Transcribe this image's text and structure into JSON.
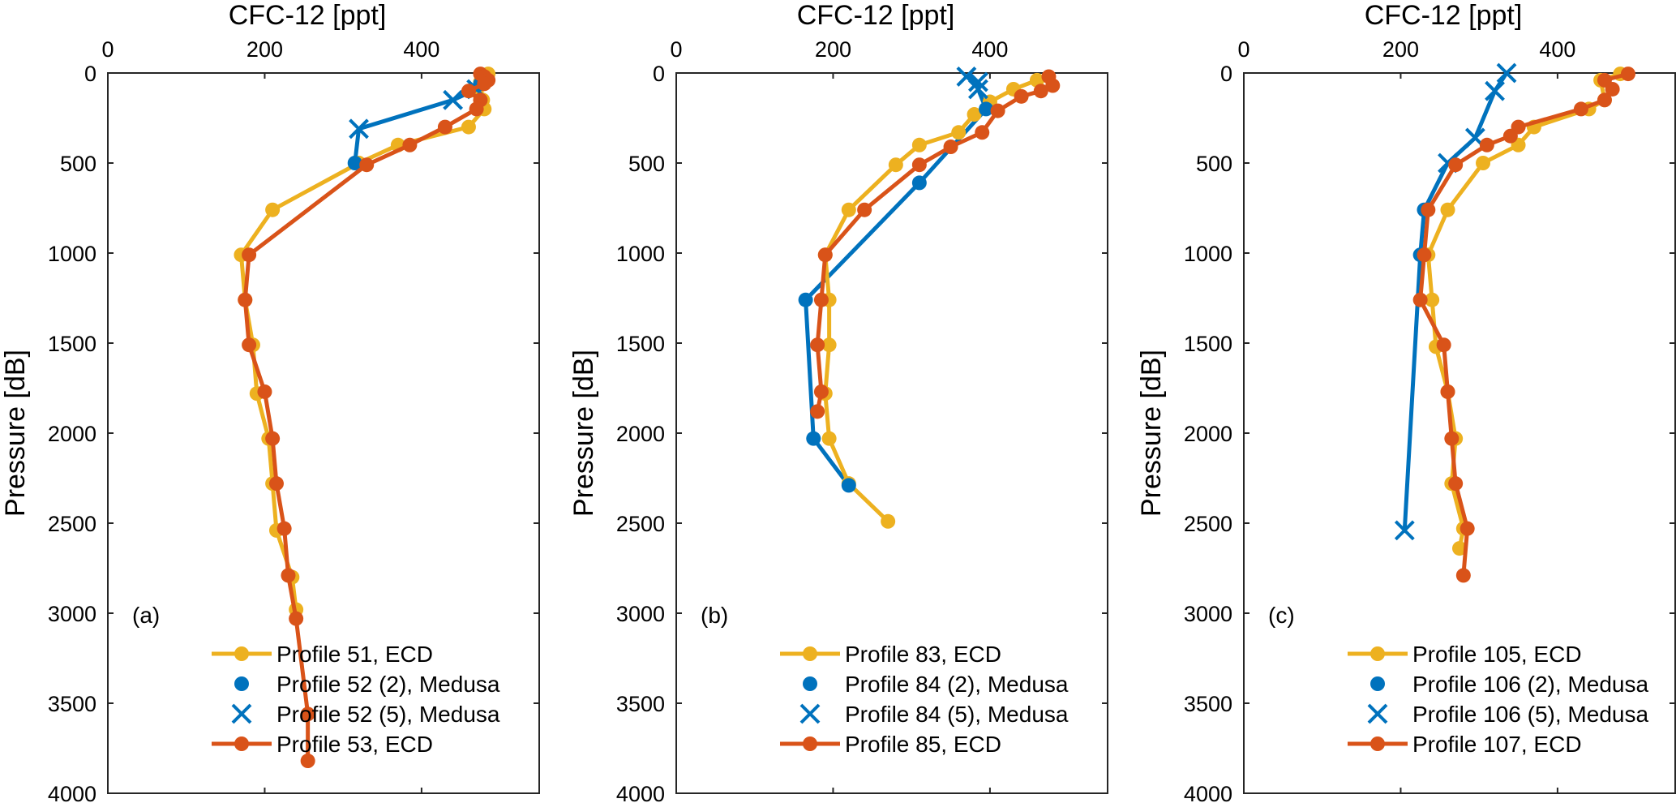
{
  "chart_data": [
    {
      "type": "line",
      "panel_label": "(a)",
      "xlabel": "CFC-12 [ppt]",
      "ylabel": "Pressure [dB]",
      "xlim": [
        0,
        550
      ],
      "ylim": [
        0,
        4000
      ],
      "y_reversed": true,
      "x_axis_location": "top",
      "xticks": [
        0,
        200,
        400
      ],
      "yticks": [
        0,
        500,
        1000,
        1500,
        2000,
        2500,
        3000,
        3500,
        4000
      ],
      "legend_position": "bottom-right",
      "series": [
        {
          "name": "Profile 51, ECD",
          "color": "#EDB120",
          "style": "line-dot",
          "points": [
            [
              485,
              5
            ],
            [
              480,
              20
            ],
            [
              475,
              50
            ],
            [
              470,
              100
            ],
            [
              478,
              150
            ],
            [
              480,
              200
            ],
            [
              460,
              300
            ],
            [
              370,
              400
            ],
            [
              320,
              500
            ],
            [
              210,
              760
            ],
            [
              170,
              1010
            ],
            [
              175,
              1260
            ],
            [
              185,
              1510
            ],
            [
              190,
              1780
            ],
            [
              205,
              2030
            ],
            [
              210,
              2280
            ],
            [
              215,
              2540
            ],
            [
              235,
              2800
            ],
            [
              240,
              2980
            ]
          ]
        },
        {
          "name": "Profile 52 (2), Medusa",
          "color": "#0072BD",
          "style": "dot",
          "points": [
            [
              315,
              500
            ],
            [
              475,
              60
            ]
          ]
        },
        {
          "name": "Profile 52 (5), Medusa",
          "color": "#0072BD",
          "style": "x",
          "points": [
            [
              470,
              90
            ],
            [
              440,
              150
            ],
            [
              320,
              310
            ]
          ]
        },
        {
          "name": "Profile 53, ECD",
          "color": "#D95319",
          "style": "line-dot",
          "points": [
            [
              475,
              5
            ],
            [
              480,
              20
            ],
            [
              485,
              40
            ],
            [
              480,
              60
            ],
            [
              460,
              100
            ],
            [
              475,
              150
            ],
            [
              470,
              200
            ],
            [
              430,
              300
            ],
            [
              385,
              400
            ],
            [
              330,
              510
            ],
            [
              180,
              1010
            ],
            [
              175,
              1260
            ],
            [
              180,
              1510
            ],
            [
              200,
              1770
            ],
            [
              210,
              2030
            ],
            [
              215,
              2280
            ],
            [
              225,
              2530
            ],
            [
              230,
              2790
            ],
            [
              240,
              3030
            ],
            [
              255,
              3560
            ],
            [
              255,
              3820
            ]
          ]
        }
      ],
      "medusa_connector": [
        [
          320,
          310
        ],
        [
          315,
          500
        ]
      ]
    },
    {
      "type": "line",
      "panel_label": "(b)",
      "xlabel": "CFC-12 [ppt]",
      "ylabel": "Pressure [dB]",
      "xlim": [
        0,
        550
      ],
      "ylim": [
        0,
        4000
      ],
      "y_reversed": true,
      "x_axis_location": "top",
      "xticks": [
        0,
        200,
        400
      ],
      "yticks": [
        0,
        500,
        1000,
        1500,
        2000,
        2500,
        3000,
        3500,
        4000
      ],
      "legend_position": "bottom-right",
      "series": [
        {
          "name": "Profile 83, ECD",
          "color": "#EDB120",
          "style": "line-dot",
          "points": [
            [
              460,
              40
            ],
            [
              430,
              90
            ],
            [
              400,
              160
            ],
            [
              380,
              230
            ],
            [
              360,
              330
            ],
            [
              310,
              400
            ],
            [
              280,
              510
            ],
            [
              220,
              760
            ],
            [
              190,
              1010
            ],
            [
              195,
              1260
            ],
            [
              195,
              1510
            ],
            [
              190,
              1780
            ],
            [
              195,
              2030
            ],
            [
              220,
              2280
            ],
            [
              270,
              2490
            ]
          ]
        },
        {
          "name": "Profile 84 (2), Medusa",
          "color": "#0072BD",
          "style": "dot",
          "points": [
            [
              395,
              200
            ],
            [
              310,
              610
            ],
            [
              165,
              1260
            ],
            [
              175,
              2030
            ],
            [
              220,
              2290
            ]
          ]
        },
        {
          "name": "Profile 84 (5), Medusa",
          "color": "#0072BD",
          "style": "x",
          "points": [
            [
              370,
              20
            ],
            [
              385,
              50
            ],
            [
              385,
              90
            ]
          ]
        },
        {
          "name": "Profile 85, ECD",
          "color": "#D95319",
          "style": "line-dot",
          "points": [
            [
              475,
              20
            ],
            [
              480,
              70
            ],
            [
              465,
              100
            ],
            [
              440,
              130
            ],
            [
              410,
              210
            ],
            [
              390,
              330
            ],
            [
              350,
              410
            ],
            [
              310,
              510
            ],
            [
              240,
              760
            ],
            [
              190,
              1010
            ],
            [
              185,
              1260
            ],
            [
              180,
              1510
            ],
            [
              185,
              1770
            ],
            [
              180,
              1880
            ]
          ]
        }
      ],
      "medusa_connector": [
        [
          385,
          90
        ],
        [
          395,
          200
        ]
      ]
    },
    {
      "type": "line",
      "panel_label": "(c)",
      "xlabel": "CFC-12 [ppt]",
      "ylabel": "Pressure [dB]",
      "xlim": [
        0,
        550
      ],
      "ylim": [
        0,
        4000
      ],
      "y_reversed": true,
      "x_axis_location": "top",
      "xticks": [
        0,
        200,
        400
      ],
      "yticks": [
        0,
        500,
        1000,
        1500,
        2000,
        2500,
        3000,
        3500,
        4000
      ],
      "legend_position": "bottom-right",
      "series": [
        {
          "name": "Profile 105, ECD",
          "color": "#EDB120",
          "style": "line-dot",
          "points": [
            [
              480,
              5
            ],
            [
              455,
              40
            ],
            [
              460,
              150
            ],
            [
              440,
              200
            ],
            [
              370,
              300
            ],
            [
              350,
              400
            ],
            [
              305,
              500
            ],
            [
              260,
              760
            ],
            [
              235,
              1010
            ],
            [
              240,
              1260
            ],
            [
              245,
              1520
            ],
            [
              260,
              1770
            ],
            [
              270,
              2030
            ],
            [
              265,
              2280
            ],
            [
              280,
              2530
            ],
            [
              275,
              2640
            ]
          ]
        },
        {
          "name": "Profile 106 (2), Medusa",
          "color": "#0072BD",
          "style": "dot",
          "points": [
            [
              230,
              760
            ],
            [
              225,
              1010
            ]
          ]
        },
        {
          "name": "Profile 106 (5), Medusa",
          "color": "#0072BD",
          "style": "x",
          "points": [
            [
              335,
              0
            ],
            [
              320,
              100
            ],
            [
              295,
              360
            ],
            [
              260,
              500
            ],
            [
              205,
              2540
            ]
          ]
        },
        {
          "name": "Profile 107, ECD",
          "color": "#D95319",
          "style": "line-dot",
          "points": [
            [
              490,
              5
            ],
            [
              460,
              40
            ],
            [
              470,
              90
            ],
            [
              460,
              150
            ],
            [
              430,
              200
            ],
            [
              350,
              300
            ],
            [
              340,
              350
            ],
            [
              310,
              400
            ],
            [
              270,
              510
            ],
            [
              235,
              760
            ],
            [
              230,
              1010
            ],
            [
              225,
              1260
            ],
            [
              255,
              1510
            ],
            [
              260,
              1770
            ],
            [
              265,
              2030
            ],
            [
              270,
              2280
            ],
            [
              285,
              2530
            ],
            [
              280,
              2790
            ]
          ]
        }
      ],
      "medusa_connector": [
        [
          260,
          500
        ],
        [
          230,
          760
        ],
        [
          225,
          1010
        ],
        [
          205,
          2540
        ]
      ]
    }
  ]
}
